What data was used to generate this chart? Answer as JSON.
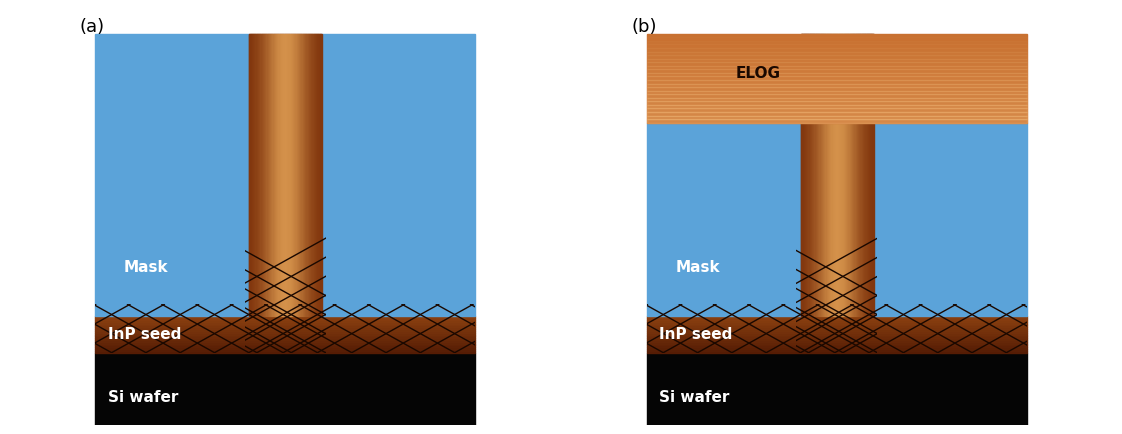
{
  "bg_color": "#ffffff",
  "si_wafer_color": "#050505",
  "inp_seed_color": "#7A2E08",
  "inp_seed_mid": "#B85A20",
  "mask_color": "#5BA3D9",
  "elog_color": "#C87030",
  "neck_center_color": "#D4914A",
  "neck_edge_color": "#7A2E08",
  "dislocation_color": "#1a0800",
  "label_color": "#ffffff",
  "elog_label_color": "#1a0800",
  "panel_a_label": "(a)",
  "panel_b_label": "(b)",
  "mask_label": "Mask",
  "inp_seed_label": "InP seed",
  "si_wafer_label": "Si wafer",
  "elog_label": "ELOG",
  "label_fontsize": 13,
  "sublabel_fontsize": 11
}
